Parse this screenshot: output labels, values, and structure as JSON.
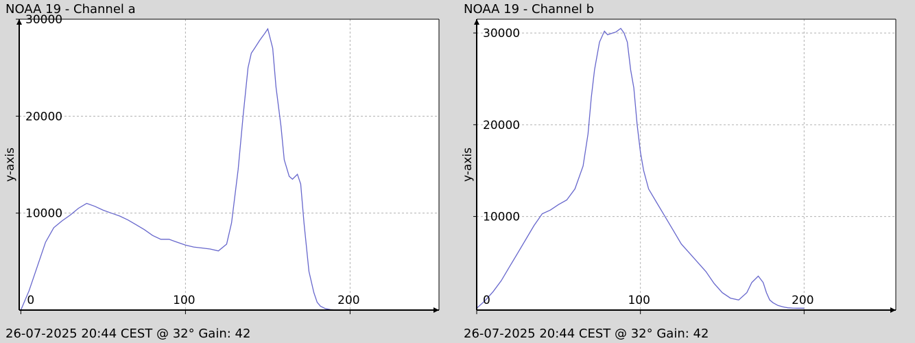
{
  "colors": {
    "background": "#d9d9d9",
    "plot_bg": "#ffffff",
    "line": "#6666cc",
    "grid": "#b0b0b0",
    "axis": "#000000"
  },
  "panels": [
    {
      "title": "NOAA 19 - Channel a",
      "footer": "26-07-2025 20:44 CEST @ 32° Gain: 42"
    },
    {
      "title": "NOAA 19 - Channel b",
      "footer": "26-07-2025 20:44 CEST @ 32° Gain: 42"
    }
  ],
  "chart_data": [
    {
      "type": "line",
      "title": "NOAA 19 - Channel a",
      "xlabel": "",
      "ylabel": "y-axis",
      "xlim": [
        -1,
        254
      ],
      "ylim": [
        0,
        30000
      ],
      "xticks": [
        0,
        100,
        200
      ],
      "yticks": [
        10000,
        20000,
        30000
      ],
      "grid": true,
      "series": [
        {
          "x": [
            0,
            5,
            10,
            15,
            20,
            25,
            30,
            35,
            40,
            45,
            50,
            55,
            60,
            65,
            70,
            75,
            80,
            85,
            90,
            95,
            100,
            105,
            110,
            115,
            120,
            125,
            128,
            132,
            135,
            138,
            140,
            142,
            145,
            148,
            150,
            153,
            155,
            158,
            160,
            163,
            165,
            168,
            170,
            172,
            175,
            178,
            180,
            182,
            185,
            188,
            190,
            193
          ],
          "y": [
            0,
            2000,
            4500,
            7000,
            8500,
            9200,
            9800,
            10500,
            11000,
            10700,
            10300,
            10000,
            9700,
            9300,
            8800,
            8300,
            7700,
            7300,
            7300,
            7000,
            6700,
            6500,
            6400,
            6300,
            6100,
            6800,
            9000,
            14500,
            20000,
            25000,
            26500,
            27000,
            27800,
            28500,
            29000,
            27000,
            23000,
            19000,
            15500,
            13800,
            13500,
            14000,
            13000,
            9000,
            4000,
            1800,
            800,
            400,
            150,
            50,
            20,
            0
          ]
        }
      ]
    },
    {
      "type": "line",
      "title": "NOAA 19 - Channel b",
      "xlabel": "",
      "ylabel": "y-axis",
      "xlim": [
        0,
        256
      ],
      "ylim": [
        -200,
        31500
      ],
      "xticks": [
        0,
        100,
        200
      ],
      "yticks": [
        10000,
        20000,
        30000
      ],
      "grid": true,
      "series": [
        {
          "x": [
            0,
            5,
            10,
            15,
            20,
            25,
            30,
            35,
            40,
            45,
            50,
            55,
            60,
            65,
            68,
            70,
            72,
            75,
            78,
            80,
            83,
            85,
            88,
            90,
            92,
            94,
            96,
            98,
            100,
            102,
            105,
            110,
            115,
            120,
            125,
            130,
            135,
            140,
            145,
            150,
            155,
            160,
            165,
            168,
            172,
            175,
            177,
            179,
            181,
            184,
            187,
            190,
            193,
            196,
            200
          ],
          "y": [
            0,
            800,
            1800,
            3000,
            4500,
            6000,
            7500,
            9000,
            10300,
            10700,
            11300,
            11800,
            13000,
            15500,
            19000,
            23000,
            26000,
            29000,
            30200,
            29800,
            30000,
            30100,
            30500,
            30000,
            29000,
            26000,
            24000,
            20000,
            17000,
            15000,
            13000,
            11500,
            10000,
            8500,
            7000,
            6000,
            5000,
            4000,
            2700,
            1700,
            1100,
            900,
            1700,
            2800,
            3500,
            2800,
            1700,
            900,
            600,
            300,
            150,
            50,
            20,
            0,
            0
          ]
        }
      ]
    }
  ]
}
